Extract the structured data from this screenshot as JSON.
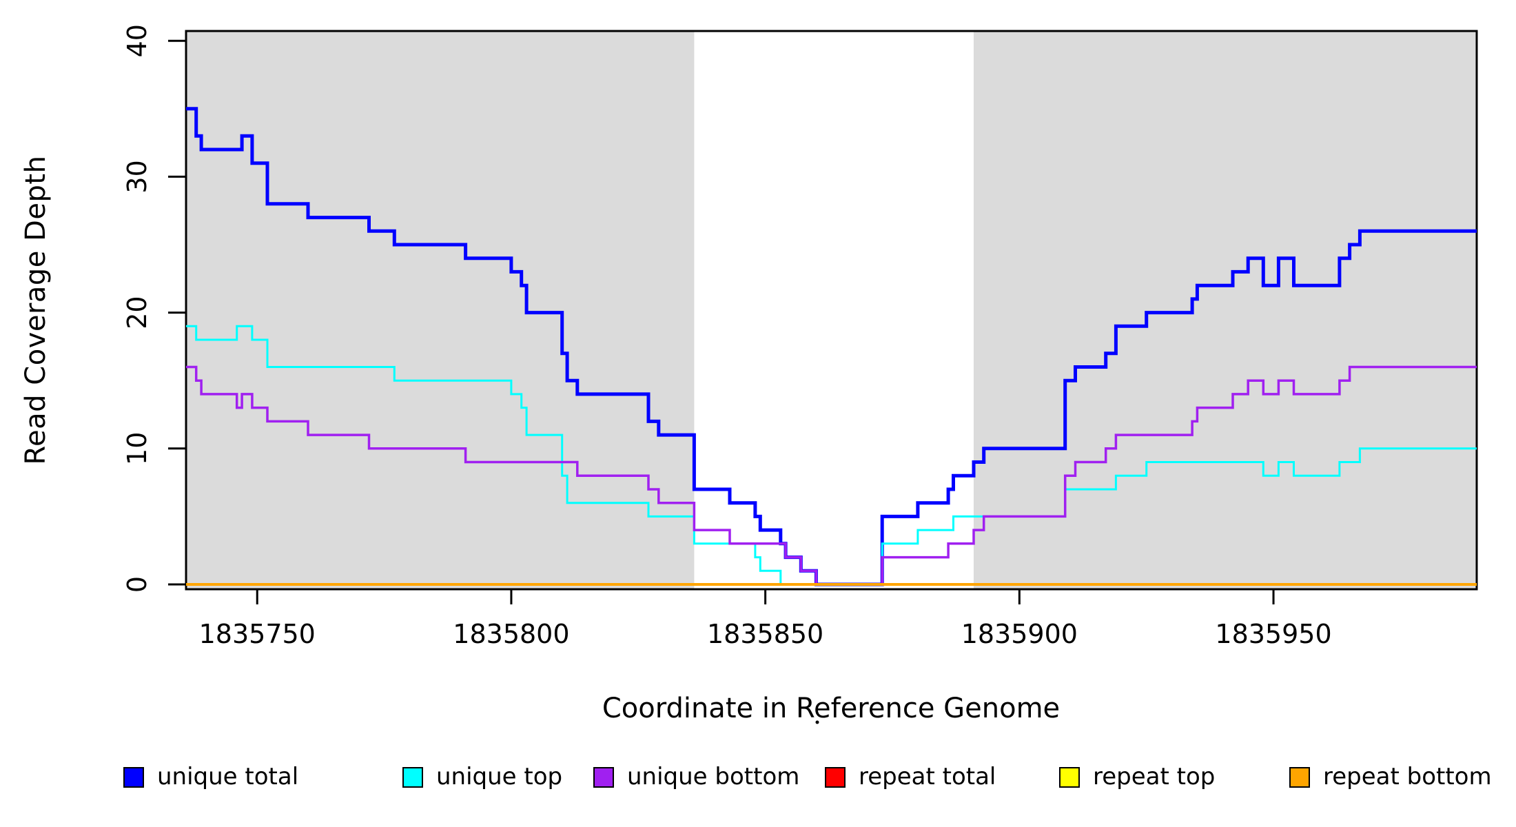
{
  "chart_data": {
    "type": "line",
    "subtype": "step",
    "title": "",
    "xlabel": "Coordinate in Reference Genome",
    "ylabel": "Read Coverage Depth",
    "xlim": [
      1835736,
      1835990
    ],
    "ylim": [
      0,
      40
    ],
    "x_ticks": [
      1835750,
      1835800,
      1835850,
      1835900,
      1835950
    ],
    "x_tick_labels": [
      "1835750",
      "1835800",
      "1835850",
      "1835900",
      "1835950"
    ],
    "y_ticks": [
      0,
      10,
      20,
      30,
      40
    ],
    "y_tick_labels": [
      "0",
      "10",
      "20",
      "30",
      "40"
    ],
    "grid": false,
    "background_color": "#ffffff",
    "frame_color": "#000000",
    "legend_position": "bottom",
    "shaded_regions": [
      {
        "x0": 1835736,
        "x1": 1835836,
        "color": "#DBDBDB"
      },
      {
        "x0": 1835891,
        "x1": 1835990,
        "color": "#DBDBDB"
      }
    ],
    "series": [
      {
        "name": "unique total",
        "color": "#0000FF",
        "width": 5,
        "steps": [
          [
            1835736,
            35
          ],
          [
            1835738,
            33
          ],
          [
            1835739,
            32
          ],
          [
            1835747,
            33
          ],
          [
            1835749,
            31
          ],
          [
            1835752,
            28
          ],
          [
            1835760,
            27
          ],
          [
            1835772,
            26
          ],
          [
            1835777,
            25
          ],
          [
            1835791,
            24
          ],
          [
            1835800,
            23
          ],
          [
            1835802,
            22
          ],
          [
            1835803,
            20
          ],
          [
            1835810,
            17
          ],
          [
            1835811,
            15
          ],
          [
            1835813,
            14
          ],
          [
            1835827,
            12
          ],
          [
            1835829,
            11
          ],
          [
            1835836,
            7
          ],
          [
            1835843,
            6
          ],
          [
            1835848,
            5
          ],
          [
            1835849,
            4
          ],
          [
            1835853,
            3
          ],
          [
            1835854,
            2
          ],
          [
            1835857,
            1
          ],
          [
            1835860,
            0
          ],
          [
            1835873,
            5
          ],
          [
            1835880,
            6
          ],
          [
            1835886,
            7
          ],
          [
            1835887,
            8
          ],
          [
            1835891,
            9
          ],
          [
            1835893,
            10
          ],
          [
            1835909,
            15
          ],
          [
            1835911,
            16
          ],
          [
            1835917,
            17
          ],
          [
            1835919,
            19
          ],
          [
            1835925,
            20
          ],
          [
            1835934,
            21
          ],
          [
            1835935,
            22
          ],
          [
            1835942,
            23
          ],
          [
            1835945,
            24
          ],
          [
            1835948,
            22
          ],
          [
            1835951,
            24
          ],
          [
            1835954,
            22
          ],
          [
            1835963,
            24
          ],
          [
            1835965,
            25
          ],
          [
            1835967,
            26
          ]
        ]
      },
      {
        "name": "unique top",
        "color": "#00FFFF",
        "width": 3,
        "steps": [
          [
            1835736,
            19
          ],
          [
            1835738,
            18
          ],
          [
            1835746,
            19
          ],
          [
            1835749,
            18
          ],
          [
            1835752,
            16
          ],
          [
            1835777,
            15
          ],
          [
            1835800,
            14
          ],
          [
            1835802,
            13
          ],
          [
            1835803,
            11
          ],
          [
            1835810,
            8
          ],
          [
            1835811,
            6
          ],
          [
            1835827,
            5
          ],
          [
            1835836,
            3
          ],
          [
            1835848,
            2
          ],
          [
            1835849,
            1
          ],
          [
            1835853,
            0
          ],
          [
            1835873,
            3
          ],
          [
            1835880,
            4
          ],
          [
            1835887,
            5
          ],
          [
            1835909,
            7
          ],
          [
            1835919,
            8
          ],
          [
            1835925,
            9
          ],
          [
            1835948,
            8
          ],
          [
            1835951,
            9
          ],
          [
            1835954,
            8
          ],
          [
            1835963,
            9
          ],
          [
            1835967,
            10
          ]
        ]
      },
      {
        "name": "unique bottom",
        "color": "#A020F0",
        "width": 3.5,
        "steps": [
          [
            1835736,
            16
          ],
          [
            1835738,
            15
          ],
          [
            1835739,
            14
          ],
          [
            1835746,
            13
          ],
          [
            1835747,
            14
          ],
          [
            1835749,
            13
          ],
          [
            1835752,
            12
          ],
          [
            1835760,
            11
          ],
          [
            1835772,
            10
          ],
          [
            1835791,
            9
          ],
          [
            1835813,
            8
          ],
          [
            1835827,
            7
          ],
          [
            1835829,
            6
          ],
          [
            1835836,
            4
          ],
          [
            1835843,
            3
          ],
          [
            1835854,
            2
          ],
          [
            1835857,
            1
          ],
          [
            1835860,
            0
          ],
          [
            1835873,
            2
          ],
          [
            1835886,
            3
          ],
          [
            1835891,
            4
          ],
          [
            1835893,
            5
          ],
          [
            1835909,
            8
          ],
          [
            1835911,
            9
          ],
          [
            1835917,
            10
          ],
          [
            1835919,
            11
          ],
          [
            1835934,
            12
          ],
          [
            1835935,
            13
          ],
          [
            1835942,
            14
          ],
          [
            1835945,
            15
          ],
          [
            1835948,
            14
          ],
          [
            1835951,
            15
          ],
          [
            1835954,
            14
          ],
          [
            1835963,
            15
          ],
          [
            1835965,
            16
          ]
        ]
      },
      {
        "name": "repeat total",
        "color": "#FF0000",
        "width": 3,
        "steps": [
          [
            1835736,
            0
          ]
        ]
      },
      {
        "name": "repeat top",
        "color": "#FFFF00",
        "width": 3,
        "steps": [
          [
            1835736,
            0
          ]
        ]
      },
      {
        "name": "repeat bottom",
        "color": "#FFA500",
        "width": 4,
        "steps": [
          [
            1835736,
            0
          ]
        ]
      }
    ],
    "legend_items": [
      {
        "label": "unique total",
        "color": "#0000FF"
      },
      {
        "label": "unique top",
        "color": "#00FFFF"
      },
      {
        "label": "unique bottom",
        "color": "#A020F0"
      },
      {
        "label": "repeat total",
        "color": "#FF0000"
      },
      {
        "label": "repeat top",
        "color": "#FFFF00"
      },
      {
        "label": "repeat bottom",
        "color": "#FFA500"
      }
    ]
  },
  "labels": {
    "xlabel": "Coordinate in Reference Genome",
    "ylabel": "Read Coverage Depth"
  }
}
